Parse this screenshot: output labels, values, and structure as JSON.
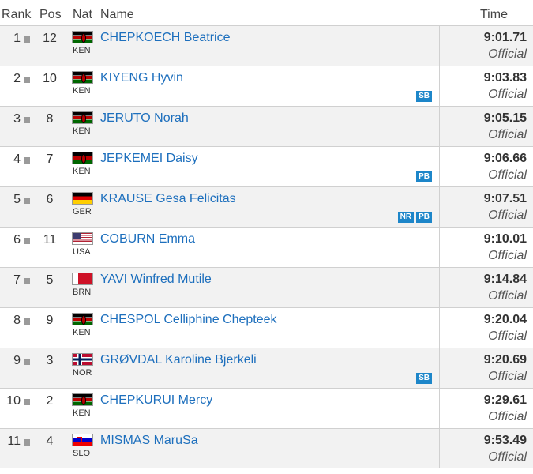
{
  "header": {
    "rank": "Rank",
    "pos": "Pos",
    "nat": "Nat",
    "name": "Name",
    "time": "Time"
  },
  "rows": [
    {
      "rank": "1",
      "pos": "12",
      "nat": "KEN",
      "flag": "ken",
      "name": "CHEPKOECH Beatrice",
      "time": "9:01.71",
      "status": "Official",
      "badges": []
    },
    {
      "rank": "2",
      "pos": "10",
      "nat": "KEN",
      "flag": "ken",
      "name": "KIYENG Hyvin",
      "time": "9:03.83",
      "status": "Official",
      "badges": [
        "SB"
      ]
    },
    {
      "rank": "3",
      "pos": "8",
      "nat": "KEN",
      "flag": "ken",
      "name": "JERUTO Norah",
      "time": "9:05.15",
      "status": "Official",
      "badges": []
    },
    {
      "rank": "4",
      "pos": "7",
      "nat": "KEN",
      "flag": "ken",
      "name": "JEPKEMEI Daisy",
      "time": "9:06.66",
      "status": "Official",
      "badges": [
        "PB"
      ]
    },
    {
      "rank": "5",
      "pos": "6",
      "nat": "GER",
      "flag": "ger",
      "name": "KRAUSE Gesa Felicitas",
      "time": "9:07.51",
      "status": "Official",
      "badges": [
        "NR",
        "PB"
      ]
    },
    {
      "rank": "6",
      "pos": "11",
      "nat": "USA",
      "flag": "usa",
      "name": "COBURN Emma",
      "time": "9:10.01",
      "status": "Official",
      "badges": []
    },
    {
      "rank": "7",
      "pos": "5",
      "nat": "BRN",
      "flag": "brn",
      "name": "YAVI Winfred Mutile",
      "time": "9:14.84",
      "status": "Official",
      "badges": []
    },
    {
      "rank": "8",
      "pos": "9",
      "nat": "KEN",
      "flag": "ken",
      "name": "CHESPOL Celliphine Chepteek",
      "time": "9:20.04",
      "status": "Official",
      "badges": []
    },
    {
      "rank": "9",
      "pos": "3",
      "nat": "NOR",
      "flag": "nor",
      "name": "GRØVDAL Karoline Bjerkeli",
      "time": "9:20.69",
      "status": "Official",
      "badges": [
        "SB"
      ]
    },
    {
      "rank": "10",
      "pos": "2",
      "nat": "KEN",
      "flag": "ken",
      "name": "CHEPKURUI Mercy",
      "time": "9:29.61",
      "status": "Official",
      "badges": []
    },
    {
      "rank": "11",
      "pos": "4",
      "nat": "SLO",
      "flag": "slo",
      "name": "MISMAS MaruSa",
      "time": "9:53.49",
      "status": "Official",
      "badges": []
    }
  ]
}
